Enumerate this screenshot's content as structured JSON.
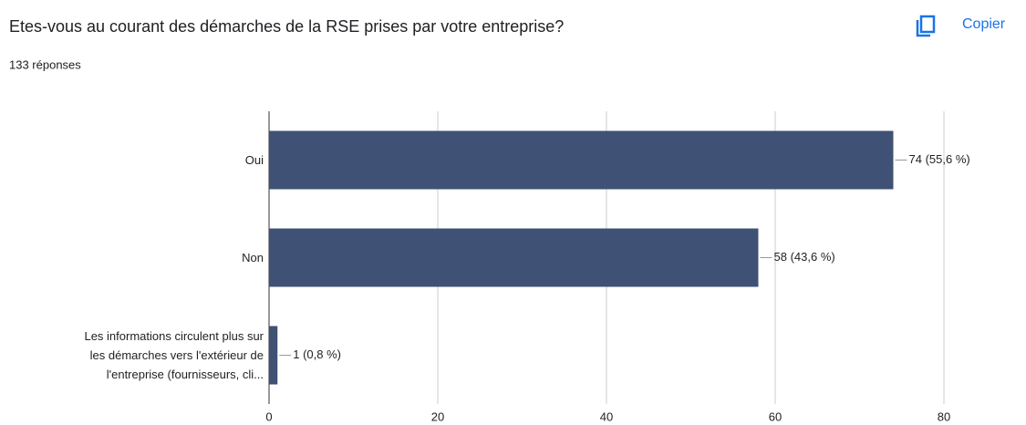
{
  "chart_data": {
    "type": "hbar",
    "title": "Etes-vous au courant des démarches de la RSE prises par votre entreprise?",
    "subtitle": "133 réponses",
    "button": "Copier",
    "categories": [
      "Oui",
      "Non",
      "Les informations circulent plus sur les démarches vers l'extérieur de l'entreprise (fournisseurs, cli..."
    ],
    "values": [
      74,
      58,
      1
    ],
    "value_labels": [
      "74 (55,6 %)",
      "58 (43,6 %)",
      "1 (0,8 %)"
    ],
    "color": "#3f5175",
    "xlim": [
      0,
      80
    ],
    "xticks": [
      0,
      20,
      40,
      60,
      80
    ],
    "grid": true
  }
}
